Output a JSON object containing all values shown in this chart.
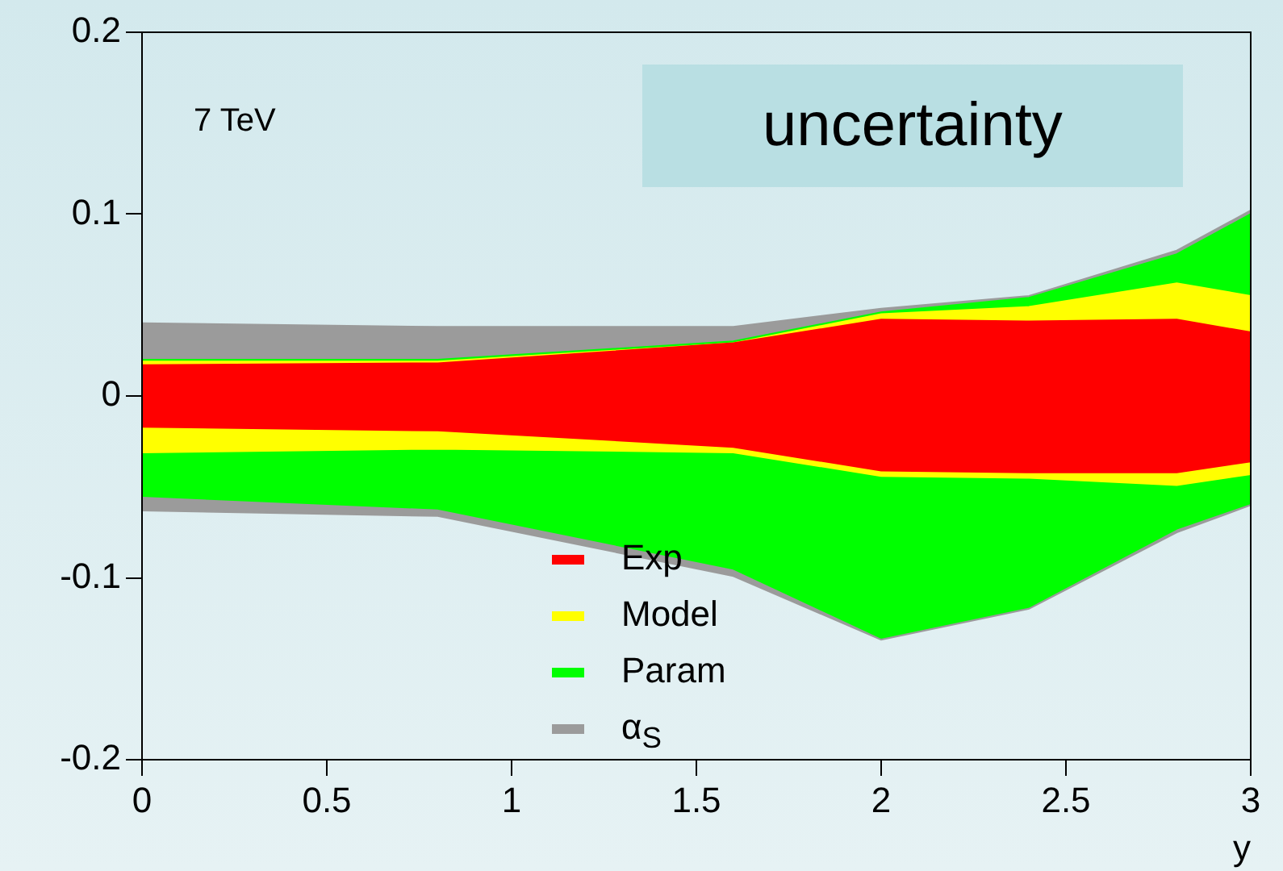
{
  "chart_data": {
    "type": "area",
    "title": "uncertainty",
    "xlabel": "y",
    "annotations": [
      "7 TeV"
    ],
    "x": [
      0,
      0.8,
      1.6,
      2.0,
      2.4,
      2.8,
      3.0
    ],
    "xlim": [
      0,
      3
    ],
    "xticks": [
      0,
      0.5,
      1,
      1.5,
      2,
      2.5,
      3
    ],
    "ylim": [
      -0.2,
      0.2
    ],
    "yticks": [
      -0.2,
      -0.1,
      0,
      0.1,
      0.2
    ],
    "grid": false,
    "legend": "bottom",
    "series": [
      {
        "name": "Exp",
        "color": "#ff0000",
        "values": [
          0.017,
          0.018,
          0.029,
          0.042,
          0.041,
          0.042,
          0.035
        ]
      },
      {
        "color": "#ff0000",
        "values": [
          -0.017,
          -0.019,
          -0.028,
          -0.041,
          -0.042,
          -0.042,
          -0.036
        ]
      },
      {
        "name": "Model",
        "color": "#ffff00",
        "values": [
          0.019,
          0.019,
          0.029,
          0.045,
          0.049,
          0.062,
          0.055
        ]
      },
      {
        "color": "#ffff00",
        "values": [
          -0.031,
          -0.029,
          -0.031,
          -0.044,
          -0.045,
          -0.049,
          -0.043
        ]
      },
      {
        "name": "Param",
        "color": "#00ff00",
        "values": [
          0.02,
          0.02,
          0.03,
          0.046,
          0.054,
          0.078,
          0.1
        ]
      },
      {
        "color": "#00ff00",
        "values": [
          -0.055,
          -0.062,
          -0.095,
          -0.133,
          -0.116,
          -0.073,
          -0.059
        ]
      },
      {
        "name": "α$_{S}$",
        "color": "#9b9b9b",
        "values": [
          0.04,
          0.038,
          0.038,
          0.048,
          0.055,
          0.08,
          0.102
        ]
      },
      {
        "color": "#9b9b9b",
        "values": [
          -0.063,
          -0.066,
          -0.099,
          -0.134,
          -0.117,
          -0.075,
          -0.06
        ]
      }
    ]
  }
}
